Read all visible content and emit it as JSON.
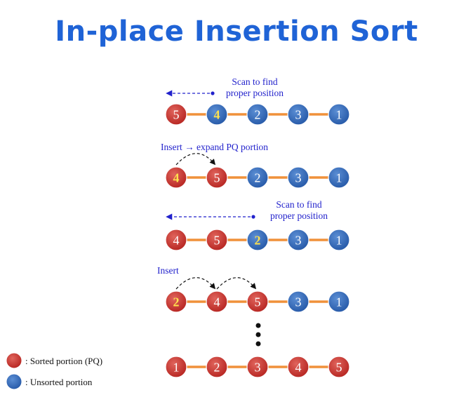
{
  "title": "In-place Insertion Sort",
  "colors": {
    "sorted": "#c0302c",
    "unsorted": "#2f66b4",
    "highlight": "#ffe14d",
    "connector": "#f0913a",
    "annotation": "#2222cc",
    "title": "#1f63d6"
  },
  "rows": [
    {
      "nodes": [
        {
          "label": "5",
          "state": "sorted",
          "highlight": false
        },
        {
          "label": "4",
          "state": "unsorted",
          "highlight": true
        },
        {
          "label": "2",
          "state": "unsorted",
          "highlight": false
        },
        {
          "label": "3",
          "state": "unsorted",
          "highlight": false
        },
        {
          "label": "1",
          "state": "unsorted",
          "highlight": false
        }
      ],
      "annotation": [
        "Scan to find",
        "proper position"
      ],
      "arrow": "scan"
    },
    {
      "nodes": [
        {
          "label": "4",
          "state": "sorted",
          "highlight": true
        },
        {
          "label": "5",
          "state": "sorted",
          "highlight": false
        },
        {
          "label": "2",
          "state": "unsorted",
          "highlight": false
        },
        {
          "label": "3",
          "state": "unsorted",
          "highlight": false
        },
        {
          "label": "1",
          "state": "unsorted",
          "highlight": false
        }
      ],
      "annotation": [
        "Insert → expand PQ portion"
      ],
      "arrow": "insert"
    },
    {
      "nodes": [
        {
          "label": "4",
          "state": "sorted",
          "highlight": false
        },
        {
          "label": "5",
          "state": "sorted",
          "highlight": false
        },
        {
          "label": "2",
          "state": "unsorted",
          "highlight": true
        },
        {
          "label": "3",
          "state": "unsorted",
          "highlight": false
        },
        {
          "label": "1",
          "state": "unsorted",
          "highlight": false
        }
      ],
      "annotation": [
        "Scan to find",
        "proper position"
      ],
      "arrow": "scan"
    },
    {
      "nodes": [
        {
          "label": "2",
          "state": "sorted",
          "highlight": true
        },
        {
          "label": "4",
          "state": "sorted",
          "highlight": false
        },
        {
          "label": "5",
          "state": "sorted",
          "highlight": false
        },
        {
          "label": "3",
          "state": "unsorted",
          "highlight": false
        },
        {
          "label": "1",
          "state": "unsorted",
          "highlight": false
        }
      ],
      "annotation": [
        "Insert"
      ],
      "arrow": "insert-shift"
    },
    {
      "nodes": [
        {
          "label": "1",
          "state": "sorted",
          "highlight": false
        },
        {
          "label": "2",
          "state": "sorted",
          "highlight": false
        },
        {
          "label": "3",
          "state": "sorted",
          "highlight": false
        },
        {
          "label": "4",
          "state": "sorted",
          "highlight": false
        },
        {
          "label": "5",
          "state": "sorted",
          "highlight": false
        }
      ],
      "annotation": [],
      "arrow": "none"
    }
  ],
  "legend": [
    {
      "state": "sorted",
      "label": ": Sorted portion (PQ)"
    },
    {
      "state": "unsorted",
      "label": ": Unsorted portion"
    }
  ]
}
